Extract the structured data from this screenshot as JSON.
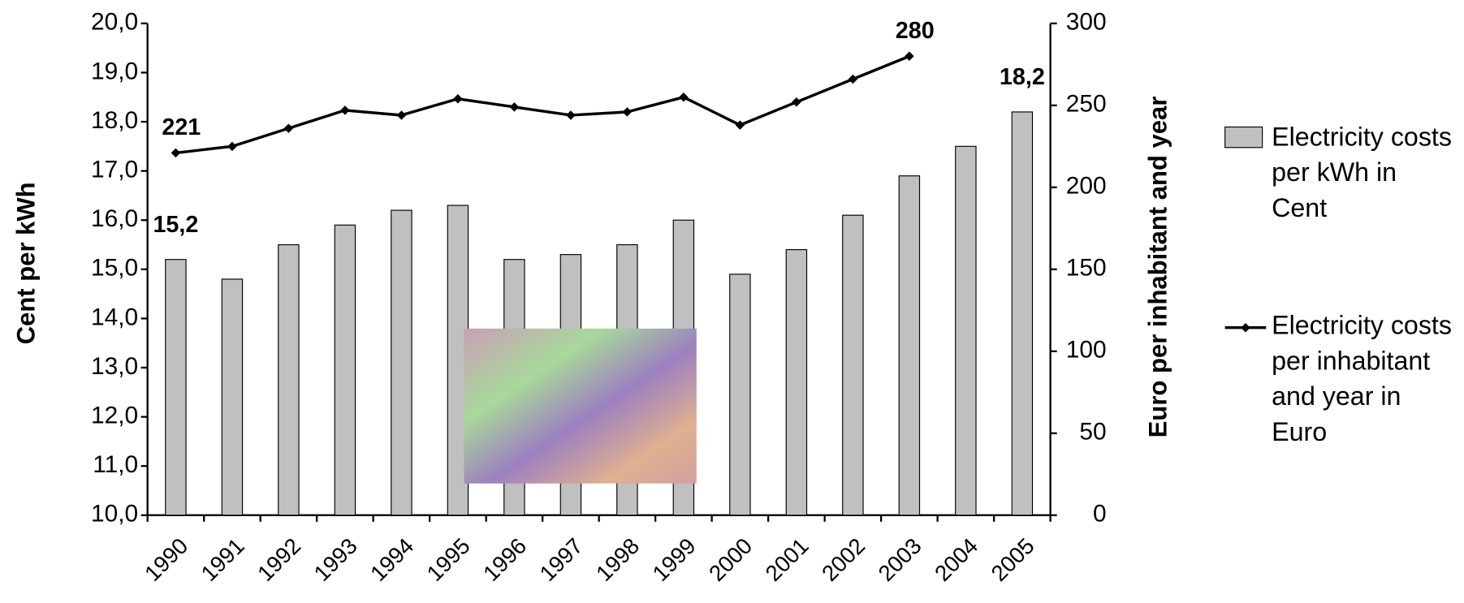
{
  "chart_data": {
    "type": "bar-line",
    "categories": [
      "1990",
      "1991",
      "1992",
      "1993",
      "1994",
      "1995",
      "1996",
      "1997",
      "1998",
      "1999",
      "2000",
      "2001",
      "2002",
      "2003",
      "2004",
      "2005"
    ],
    "ylabel": "Cent per kWh",
    "y2label": "Euro per inhabitant and year",
    "ylim": [
      10,
      20
    ],
    "yticks": [
      {
        "value": 10,
        "label": "10,0"
      },
      {
        "value": 11,
        "label": "11,0"
      },
      {
        "value": 12,
        "label": "12,0"
      },
      {
        "value": 13,
        "label": "13,0"
      },
      {
        "value": 14,
        "label": "14,0"
      },
      {
        "value": 15,
        "label": "15,0"
      },
      {
        "value": 16,
        "label": "16,0"
      },
      {
        "value": 17,
        "label": "17,0"
      },
      {
        "value": 18,
        "label": "18,0"
      },
      {
        "value": 19,
        "label": "19,0"
      },
      {
        "value": 20,
        "label": "20,0"
      }
    ],
    "y2lim": [
      0,
      300
    ],
    "y2ticks": [
      0,
      50,
      100,
      150,
      200,
      250,
      300
    ],
    "legend": "right",
    "grid": false,
    "series": [
      {
        "name": "Electricity costs per kWh in Cent",
        "type": "bar",
        "color": "#c0c0c0",
        "values": [
          15.2,
          14.8,
          15.5,
          15.9,
          16.2,
          16.3,
          15.2,
          15.3,
          15.5,
          16.0,
          14.9,
          15.4,
          16.1,
          16.9,
          17.5,
          18.2
        ],
        "value_labels": [
          "15,2",
          null,
          null,
          null,
          null,
          null,
          null,
          null,
          null,
          null,
          null,
          null,
          null,
          null,
          null,
          "18,2"
        ]
      },
      {
        "name": "Electricity costs per inhabitant and year in Euro",
        "type": "line",
        "color": "#000000",
        "axis": "y2",
        "values": [
          221,
          225,
          236,
          247,
          244,
          254,
          249,
          244,
          246,
          255,
          238,
          252,
          266,
          280,
          null,
          null
        ],
        "value_labels": [
          "221",
          null,
          null,
          null,
          null,
          null,
          null,
          null,
          null,
          null,
          null,
          null,
          null,
          "280",
          null,
          null
        ]
      }
    ]
  }
}
